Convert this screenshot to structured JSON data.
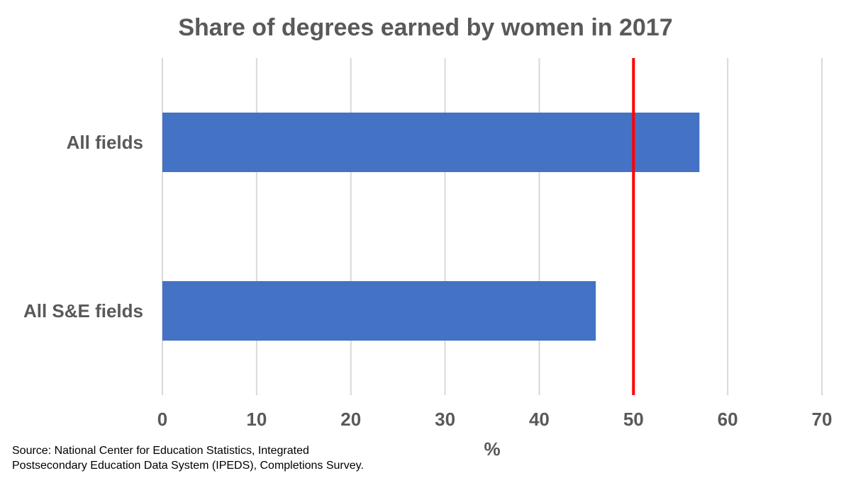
{
  "chart_data": {
    "type": "bar",
    "orientation": "horizontal",
    "title": "Share of degrees earned by women in 2017",
    "xlabel": "%",
    "ylabel": "",
    "categories": [
      "All fields",
      "All S&E fields"
    ],
    "values": [
      57,
      46
    ],
    "xlim": [
      0,
      70
    ],
    "xticks": [
      "0",
      "10",
      "20",
      "30",
      "40",
      "50",
      "60",
      "70"
    ],
    "xtick_values": [
      0,
      10,
      20,
      30,
      40,
      50,
      60,
      70
    ],
    "reference_line": 50,
    "grid": true,
    "legend": "none",
    "colors": {
      "bar": "#4472C4",
      "reference_line": "#FF0000",
      "grid": "#D9D9D9",
      "text": "#595959"
    }
  },
  "source": {
    "line1": "Source: National Center for Education Statistics, Integrated",
    "line2": "Postsecondary Education Data System (IPEDS), Completions Survey."
  }
}
